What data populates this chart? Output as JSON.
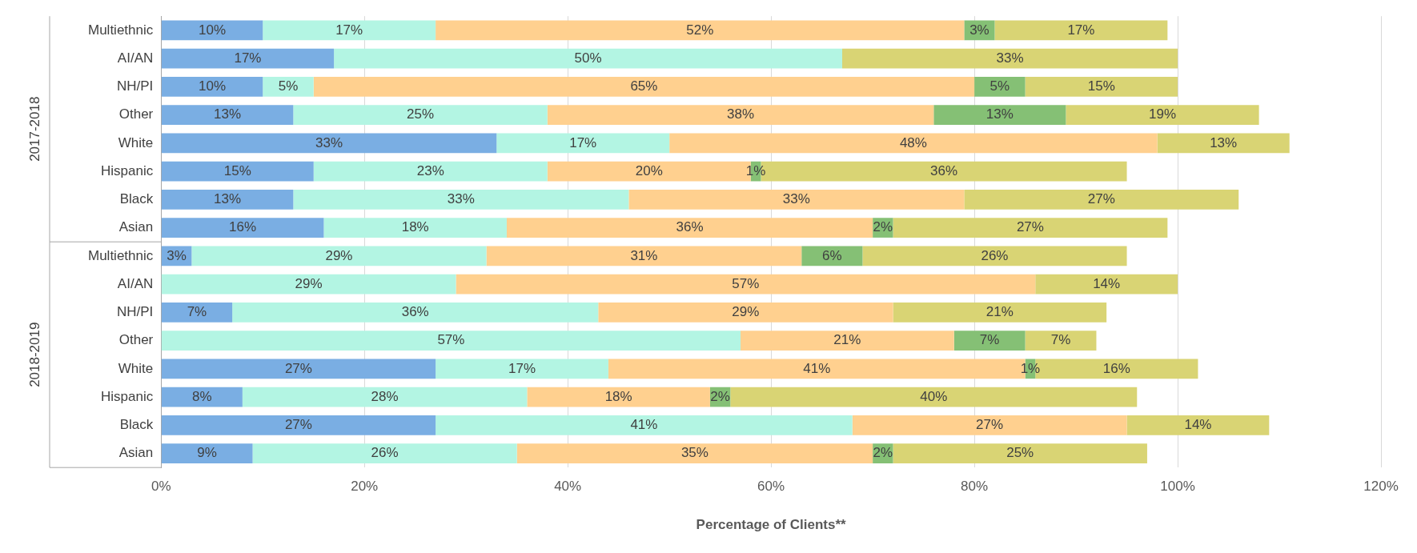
{
  "chart_data": {
    "type": "bar",
    "orientation": "horizontal",
    "stacked": true,
    "xlabel": "Percentage of Clients**",
    "categories": [
      "Multiethnic",
      "AI/AN",
      "NH/PI",
      "Other",
      "White",
      "Hispanic",
      "Black",
      "Asian",
      "Multiethnic",
      "AI/AN",
      "NH/PI",
      "Other",
      "White",
      "Hispanic",
      "Black",
      "Asian"
    ],
    "annotations": [
      "2017-2018",
      "2018-2019"
    ],
    "xlim": [
      0,
      120
    ],
    "xticks": [
      {
        "value": 0,
        "label": "0%"
      },
      {
        "value": 20,
        "label": "20%"
      },
      {
        "value": 40,
        "label": "40%"
      },
      {
        "value": 60,
        "label": "60%"
      },
      {
        "value": 80,
        "label": "80%"
      },
      {
        "value": 100,
        "label": "100%"
      },
      {
        "value": 120,
        "label": "120%"
      }
    ],
    "grid": "x",
    "legend": false,
    "series": [
      {
        "color": "#7aaee3",
        "values": [
          10,
          17,
          10,
          13,
          33,
          15,
          13,
          16,
          3,
          null,
          7,
          null,
          27,
          8,
          27,
          9
        ],
        "value_labels": [
          "10%",
          "17%",
          "10%",
          "13%",
          "33%",
          "15%",
          "13%",
          "16%",
          "3%",
          null,
          "7%",
          null,
          "27%",
          "8%",
          "27%",
          "9%"
        ]
      },
      {
        "color": "#b3f5e3",
        "values": [
          17,
          50,
          5,
          25,
          17,
          23,
          33,
          18,
          29,
          29,
          36,
          57,
          17,
          28,
          41,
          26
        ],
        "value_labels": [
          "17%",
          "50%",
          "5%",
          "25%",
          "17%",
          "23%",
          "33%",
          "18%",
          "29%",
          "29%",
          "36%",
          "57%",
          "17%",
          "28%",
          "41%",
          "26%"
        ]
      },
      {
        "color": "#ffd08f",
        "values": [
          52,
          null,
          65,
          38,
          48,
          20,
          33,
          36,
          31,
          57,
          29,
          21,
          41,
          18,
          27,
          35
        ],
        "value_labels": [
          "52%",
          null,
          "65%",
          "38%",
          "48%",
          "20%",
          "33%",
          "36%",
          "31%",
          "57%",
          "29%",
          "21%",
          "41%",
          "18%",
          "27%",
          "35%"
        ]
      },
      {
        "color": "#85c075",
        "values": [
          3,
          null,
          5,
          13,
          null,
          1,
          null,
          2,
          6,
          null,
          null,
          7,
          1,
          2,
          null,
          2
        ],
        "value_labels": [
          "3%",
          null,
          "5%",
          "13%",
          null,
          "1%",
          null,
          "2%",
          "6%",
          null,
          null,
          "7%",
          "1%",
          "2%",
          null,
          "2%"
        ]
      },
      {
        "color": "#d9d474",
        "values": [
          17,
          33,
          15,
          19,
          13,
          36,
          27,
          27,
          26,
          14,
          21,
          7,
          16,
          40,
          14,
          25
        ],
        "value_labels": [
          "17%",
          "33%",
          "15%",
          "19%",
          "13%",
          "36%",
          "27%",
          "27%",
          "26%",
          "14%",
          "21%",
          "7%",
          "16%",
          "40%",
          "14%",
          "25%"
        ]
      }
    ]
  }
}
